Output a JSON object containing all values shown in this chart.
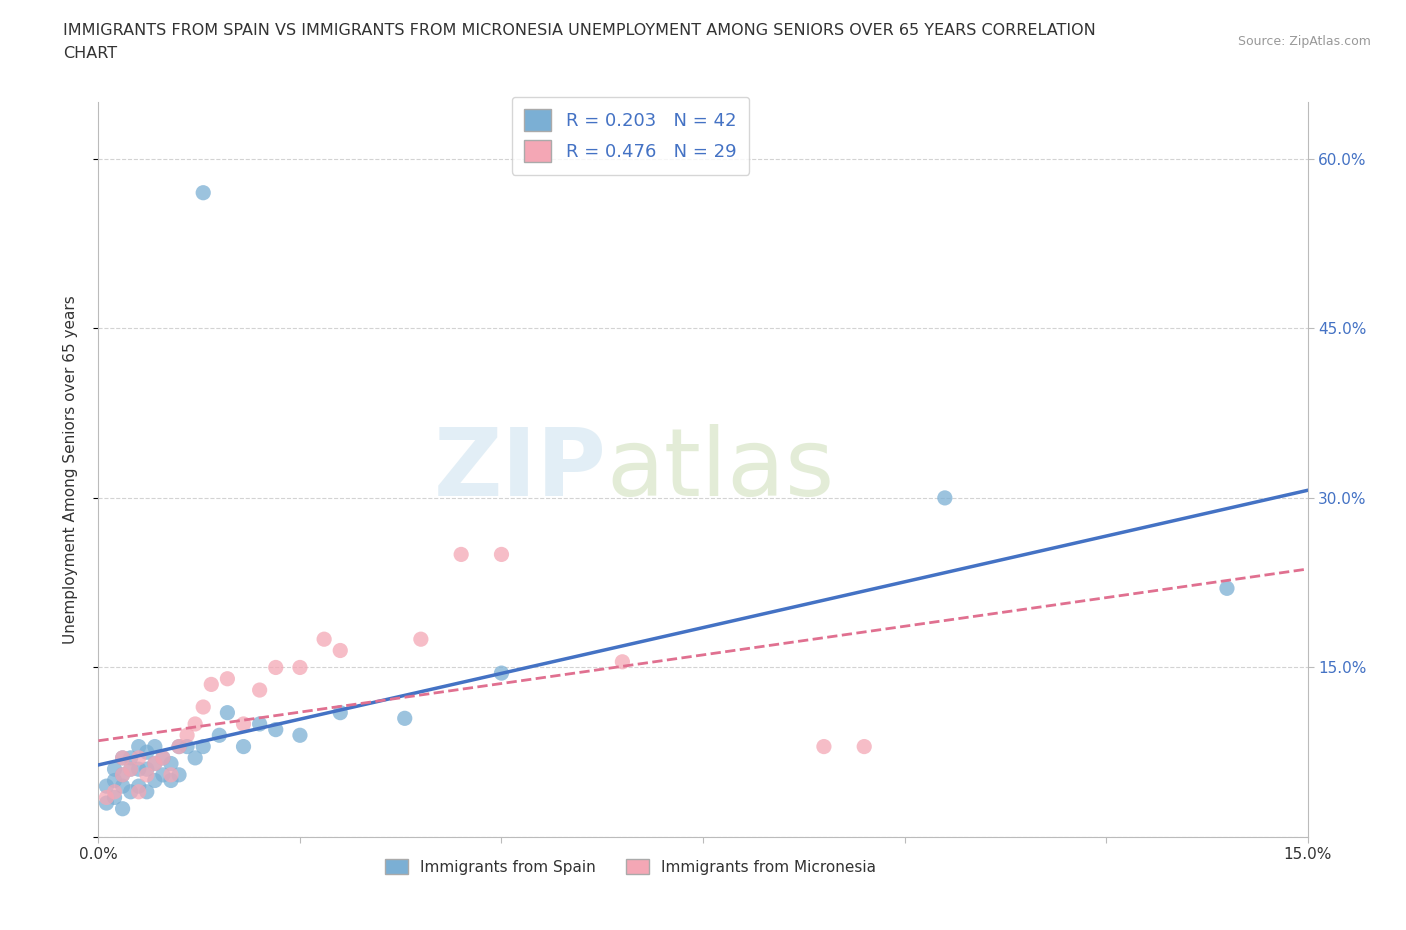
{
  "title_line1": "IMMIGRANTS FROM SPAIN VS IMMIGRANTS FROM MICRONESIA UNEMPLOYMENT AMONG SENIORS OVER 65 YEARS CORRELATION",
  "title_line2": "CHART",
  "source": "Source: ZipAtlas.com",
  "ylabel": "Unemployment Among Seniors over 65 years",
  "xlim": [
    0.0,
    0.15
  ],
  "ylim": [
    0.0,
    0.65
  ],
  "xticks": [
    0.0,
    0.025,
    0.05,
    0.075,
    0.1,
    0.125,
    0.15
  ],
  "xtick_labels": [
    "0.0%",
    "",
    "",
    "",
    "",
    "",
    "15.0%"
  ],
  "ytick_positions": [
    0.0,
    0.15,
    0.3,
    0.45,
    0.6
  ],
  "right_ytick_positions": [
    0.15,
    0.3,
    0.45,
    0.6
  ],
  "right_ytick_labels": [
    "15.0%",
    "30.0%",
    "45.0%",
    "60.0%"
  ],
  "spain_color": "#7bafd4",
  "micronesia_color": "#f4a7b5",
  "spain_R": 0.203,
  "spain_N": 42,
  "micronesia_R": 0.476,
  "micronesia_N": 29,
  "watermark_zip": "ZIP",
  "watermark_atlas": "atlas",
  "legend_label_spain": "Immigrants from Spain",
  "legend_label_micronesia": "Immigrants from Micronesia",
  "spain_scatter_x": [
    0.001,
    0.001,
    0.002,
    0.002,
    0.002,
    0.003,
    0.003,
    0.003,
    0.003,
    0.004,
    0.004,
    0.004,
    0.005,
    0.005,
    0.005,
    0.006,
    0.006,
    0.006,
    0.007,
    0.007,
    0.007,
    0.008,
    0.008,
    0.009,
    0.009,
    0.01,
    0.01,
    0.011,
    0.012,
    0.013,
    0.013,
    0.015,
    0.016,
    0.018,
    0.02,
    0.022,
    0.025,
    0.03,
    0.038,
    0.05,
    0.105,
    0.14
  ],
  "spain_scatter_y": [
    0.03,
    0.045,
    0.035,
    0.05,
    0.06,
    0.025,
    0.045,
    0.055,
    0.07,
    0.04,
    0.06,
    0.07,
    0.045,
    0.06,
    0.08,
    0.04,
    0.06,
    0.075,
    0.05,
    0.065,
    0.08,
    0.055,
    0.07,
    0.05,
    0.065,
    0.055,
    0.08,
    0.08,
    0.07,
    0.57,
    0.08,
    0.09,
    0.11,
    0.08,
    0.1,
    0.095,
    0.09,
    0.11,
    0.105,
    0.145,
    0.3,
    0.22
  ],
  "micronesia_scatter_x": [
    0.001,
    0.002,
    0.003,
    0.003,
    0.004,
    0.005,
    0.005,
    0.006,
    0.007,
    0.008,
    0.009,
    0.01,
    0.011,
    0.012,
    0.013,
    0.014,
    0.016,
    0.018,
    0.02,
    0.022,
    0.025,
    0.028,
    0.03,
    0.04,
    0.045,
    0.05,
    0.065,
    0.09,
    0.095
  ],
  "micronesia_scatter_y": [
    0.035,
    0.04,
    0.055,
    0.07,
    0.06,
    0.04,
    0.07,
    0.055,
    0.065,
    0.07,
    0.055,
    0.08,
    0.09,
    0.1,
    0.115,
    0.135,
    0.14,
    0.1,
    0.13,
    0.15,
    0.15,
    0.175,
    0.165,
    0.175,
    0.25,
    0.25,
    0.155,
    0.08,
    0.08
  ],
  "background_color": "#ffffff",
  "grid_color": "#c8c8c8",
  "spain_line_color": "#4472c4",
  "micronesia_line_color": "#e07090"
}
